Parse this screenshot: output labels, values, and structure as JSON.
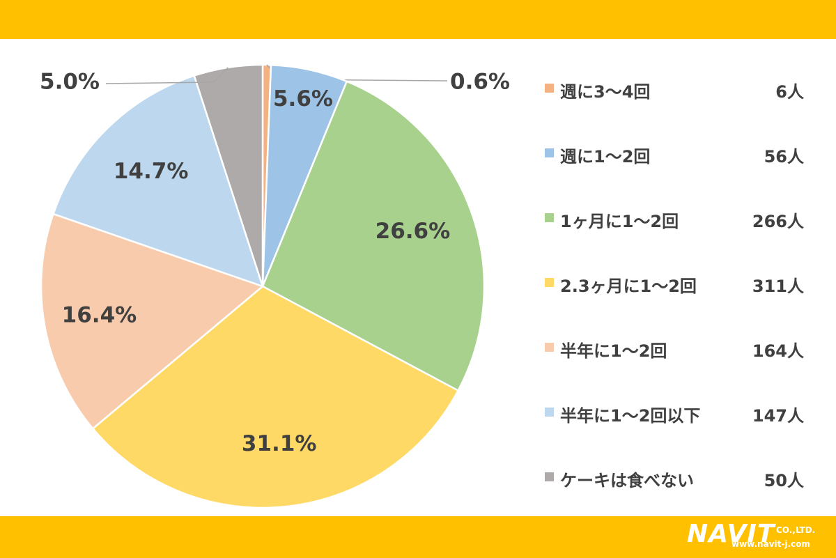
{
  "theme": {
    "band_color": "#FFC000",
    "text_color": "#404040"
  },
  "brand": {
    "logo_text": "NAVIT",
    "logo_suffix": "CO.,LTD.",
    "logo_url": "www.navit-j.com"
  },
  "chart_data": {
    "type": "pie",
    "title": "",
    "start_angle_deg": 0,
    "direction": "clockwise",
    "slices": [
      {
        "label": "週に3〜4回",
        "percent": 0.6,
        "count": 6,
        "count_label": "6人",
        "percent_label": "0.6%",
        "color": "#F4B183"
      },
      {
        "label": "週に1〜2回",
        "percent": 5.6,
        "count": 56,
        "count_label": "56人",
        "percent_label": "5.6%",
        "color": "#9DC3E6"
      },
      {
        "label": "1ヶ月に1〜2回",
        "percent": 26.6,
        "count": 266,
        "count_label": "266人",
        "percent_label": "26.6%",
        "color": "#A9D18E"
      },
      {
        "label": "2.3ヶ月に1〜2回",
        "percent": 31.1,
        "count": 311,
        "count_label": "311人",
        "percent_label": "31.1%",
        "color": "#FFD966"
      },
      {
        "label": "半年に1〜2回",
        "percent": 16.4,
        "count": 164,
        "count_label": "164人",
        "percent_label": "16.4%",
        "color": "#F8CBAD"
      },
      {
        "label": "半年に1〜2回以下",
        "percent": 14.7,
        "count": 147,
        "count_label": "147人",
        "percent_label": "14.7%",
        "color": "#BDD7EE"
      },
      {
        "label": "ケーキは食べない",
        "percent": 5.0,
        "count": 50,
        "count_label": "50人",
        "percent_label": "5.0%",
        "color": "#AEAAAA"
      }
    ],
    "legend_position": "right"
  }
}
